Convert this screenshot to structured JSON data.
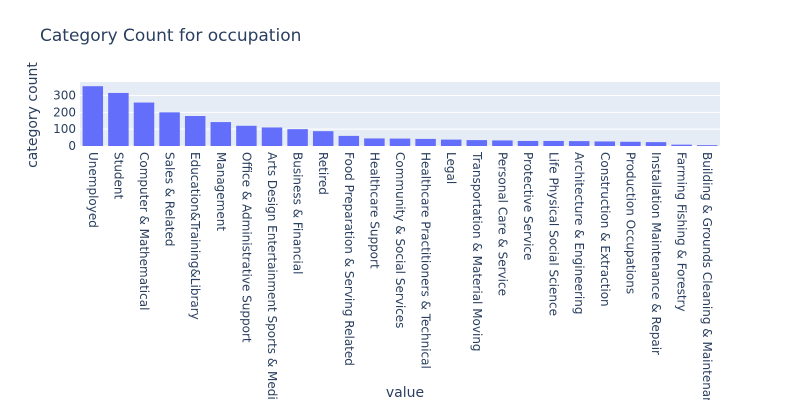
{
  "chart_data": {
    "type": "bar",
    "title": "Category Count for occupation",
    "xlabel": "value",
    "ylabel": "category count",
    "ylim": [
      0,
      380
    ],
    "yticks": [
      0,
      100,
      200,
      300
    ],
    "grid": true,
    "colors": {
      "bar": "#636efa",
      "plot_bg": "#e5ecf6",
      "grid": "#ffffff",
      "text": "#2a3f5f"
    },
    "categories": [
      "Unemployed",
      "Student",
      "Computer & Mathematical",
      "Sales & Related",
      "Education&Training&Library",
      "Management",
      "Office & Administrative Support",
      "Arts Design Entertainment Sports & Media",
      "Business & Financial",
      "Retired",
      "Food Preparation & Serving Related",
      "Healthcare Support",
      "Community & Social Services",
      "Healthcare Practitioners & Technical",
      "Legal",
      "Transportation & Material Moving",
      "Personal Care & Service",
      "Protective Service",
      "Life Physical Social Science",
      "Architecture & Engineering",
      "Construction & Extraction",
      "Production Occupations",
      "Installation Maintenance & Repair",
      "Farming Fishing & Forestry",
      "Building & Grounds Cleaning & Maintenance"
    ],
    "values": [
      355,
      315,
      258,
      200,
      178,
      142,
      120,
      110,
      100,
      88,
      60,
      45,
      44,
      42,
      38,
      35,
      33,
      30,
      30,
      29,
      27,
      25,
      23,
      8,
      5
    ]
  }
}
